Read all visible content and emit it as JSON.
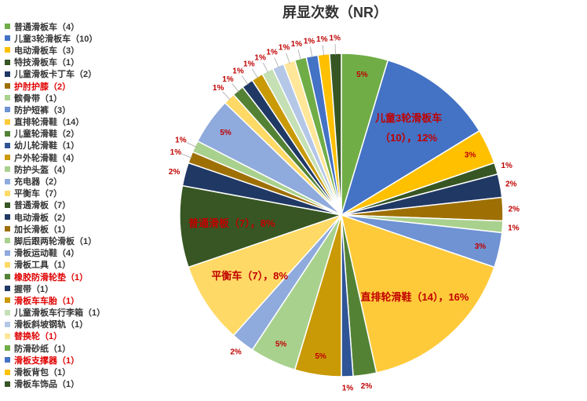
{
  "chart_data": {
    "type": "pie",
    "title": "屏显次数（NR）",
    "legend_position": "left",
    "slices": [
      {
        "name": "普通滑板车（4）",
        "count": 4,
        "percent_label": "5%",
        "color": "#70ad47",
        "legend_red": false
      },
      {
        "name": "儿童3轮滑板车（10）",
        "count": 10,
        "percent_label": "儿童3轮滑板车\n（10），12%",
        "color": "#4472c4",
        "legend_red": false
      },
      {
        "name": "电动滑板车（3）",
        "count": 3,
        "percent_label": "3%",
        "color": "#ffc000",
        "legend_red": false
      },
      {
        "name": "特技滑板车（1）",
        "count": 1,
        "percent_label": "1%",
        "color": "#375623",
        "legend_red": false
      },
      {
        "name": "儿童滑板卡丁车（2）",
        "count": 2,
        "percent_label": "2%",
        "color": "#203864",
        "legend_red": false
      },
      {
        "name": "护肘护膝（2）",
        "count": 2,
        "percent_label": "2%",
        "color": "#9e7004",
        "legend_red": true
      },
      {
        "name": "髌骨带（1）",
        "count": 1,
        "percent_label": "1%",
        "color": "#a9d18e",
        "legend_red": false
      },
      {
        "name": "防护短裤（3）",
        "count": 3,
        "percent_label": "3%",
        "color": "#6f93d3",
        "legend_red": false
      },
      {
        "name": "直排轮滑鞋（14）",
        "count": 14,
        "percent_label": "直排轮滑鞋（14），16%",
        "color": "#ffca3a",
        "legend_red": false
      },
      {
        "name": "儿童轮滑鞋（2）",
        "count": 2,
        "percent_label": "2%",
        "color": "#548235",
        "legend_red": false
      },
      {
        "name": "幼儿轮滑鞋（1）",
        "count": 1,
        "percent_label": "1%",
        "color": "#2f5597",
        "legend_red": false
      },
      {
        "name": "户外轮滑鞋（4）",
        "count": 4,
        "percent_label": "5%",
        "color": "#c99a06",
        "legend_red": false
      },
      {
        "name": "防护头盔（4）",
        "count": 4,
        "percent_label": "5%",
        "color": "#a9d18e",
        "legend_red": false
      },
      {
        "name": "充电器（2）",
        "count": 2,
        "percent_label": "2%",
        "color": "#8faadc",
        "legend_red": false
      },
      {
        "name": "平衡车（7）",
        "count": 7,
        "percent_label": "平衡车（7），8%",
        "color": "#ffd966",
        "legend_red": false
      },
      {
        "name": "普通滑板（7）",
        "count": 7,
        "percent_label": "普通滑板（7），8%",
        "color": "#375623",
        "legend_red": false
      },
      {
        "name": "电动滑板（2）",
        "count": 2,
        "percent_label": "2%",
        "color": "#203864",
        "legend_red": false
      },
      {
        "name": "加长滑板（1）",
        "count": 1,
        "percent_label": "1%",
        "color": "#9e7004",
        "legend_red": false
      },
      {
        "name": "脚后跟两轮滑板（1）",
        "count": 1,
        "percent_label": "1%",
        "color": "#a9d18e",
        "legend_red": false
      },
      {
        "name": "滑板运动鞋（4）",
        "count": 4,
        "percent_label": "5%",
        "color": "#8faadc",
        "legend_red": false
      },
      {
        "name": "滑板工具（1）",
        "count": 1,
        "percent_label": "1%",
        "color": "#ffd966",
        "legend_red": false
      },
      {
        "name": "橡胶防滑轮垫（1）",
        "count": 1,
        "percent_label": "1%",
        "color": "#548235",
        "legend_red": true
      },
      {
        "name": "握带（1）",
        "count": 1,
        "percent_label": "1%",
        "color": "#203864",
        "legend_red": false
      },
      {
        "name": "滑板车车胎（1）",
        "count": 1,
        "percent_label": "1%",
        "color": "#c99a06",
        "legend_red": true
      },
      {
        "name": "儿童滑板车行李箱（1）",
        "count": 1,
        "percent_label": "1%",
        "color": "#c5e0b4",
        "legend_red": false
      },
      {
        "name": "滑板斜坡钢轨（1）",
        "count": 1,
        "percent_label": "1%",
        "color": "#b4c7e7",
        "legend_red": false
      },
      {
        "name": "替换轮（1）",
        "count": 1,
        "percent_label": "1%",
        "color": "#ffe699",
        "legend_red": true
      },
      {
        "name": "防滑砂纸（1）",
        "count": 1,
        "percent_label": "1%",
        "color": "#70ad47",
        "legend_red": false
      },
      {
        "name": "滑板支撑器（1）",
        "count": 1,
        "percent_label": "1%",
        "color": "#4472c4",
        "legend_red": true
      },
      {
        "name": "滑板背包（1）",
        "count": 1,
        "percent_label": "1%",
        "color": "#ffc000",
        "legend_red": false
      },
      {
        "name": "滑板车饰品（1）",
        "count": 1,
        "percent_label": "1%",
        "color": "#375623",
        "legend_red": false
      }
    ]
  }
}
